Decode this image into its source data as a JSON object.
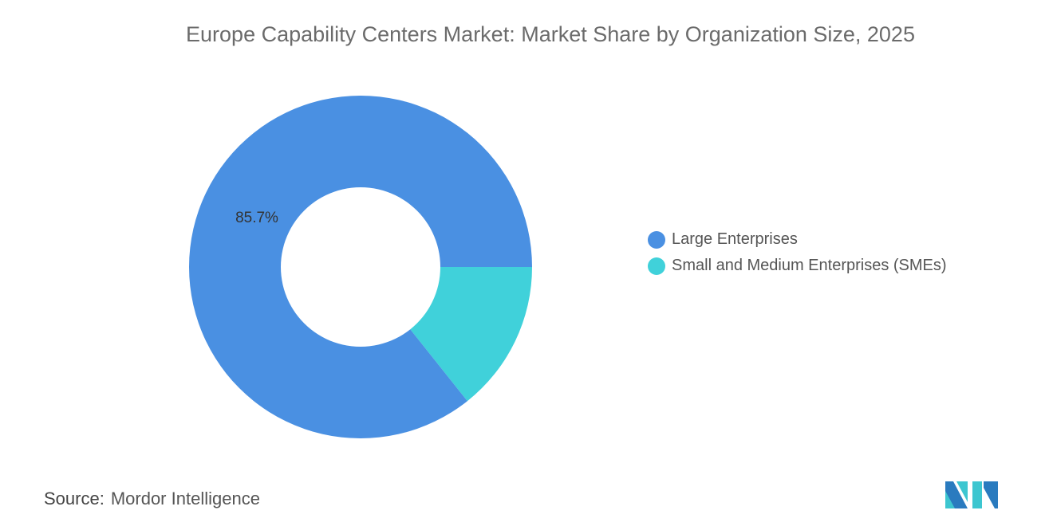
{
  "title": "Europe Capability Centers Market: Market Share by Organization Size, 2025",
  "source_label": "Source:",
  "source_value": "Mordor Intelligence",
  "logo_text": "Mordor Intelligence",
  "chart_data": {
    "type": "pie",
    "donut": true,
    "title": "Europe Capability Centers Market: Market Share by Organization Size, 2025",
    "categories": [
      "Large Enterprises",
      "Small and Medium Enterprises (SMEs)"
    ],
    "values": [
      85.7,
      14.3
    ],
    "colors": [
      "#4a90e2",
      "#40d1da"
    ],
    "data_labels": [
      "85.7%",
      ""
    ],
    "legend_placement": "right"
  }
}
